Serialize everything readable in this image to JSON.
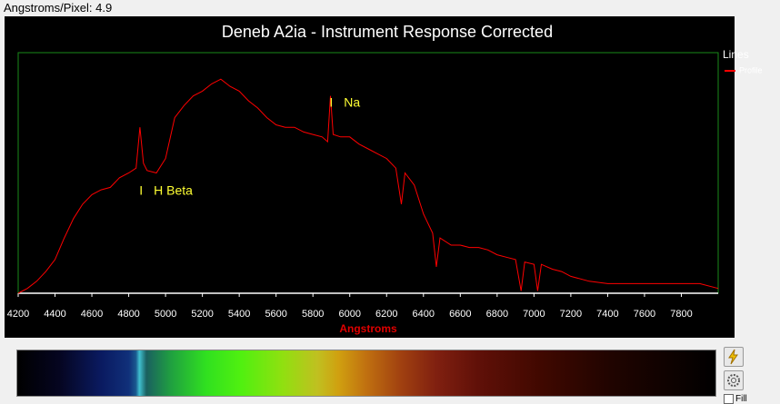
{
  "header": {
    "scale_label": "Angstroms/Pixel: 4.9"
  },
  "chart_data": {
    "type": "line",
    "title": "Deneb A2ia - Instrument Response Corrected",
    "x_label": "Angstroms",
    "legend_title": "Lines",
    "legend": "top-right",
    "grid": false,
    "xlim": [
      4200,
      8000
    ],
    "ylim": [
      0,
      1
    ],
    "xticks": [
      4200,
      4400,
      4600,
      4800,
      5000,
      5200,
      5400,
      5600,
      5800,
      6000,
      6200,
      6400,
      6600,
      6800,
      7000,
      7200,
      7400,
      7600,
      7800
    ],
    "x": [
      4200,
      4250,
      4300,
      4350,
      4400,
      4450,
      4500,
      4550,
      4600,
      4650,
      4700,
      4750,
      4800,
      4840,
      4861,
      4880,
      4900,
      4950,
      5000,
      5050,
      5100,
      5150,
      5200,
      5250,
      5300,
      5350,
      5400,
      5450,
      5500,
      5550,
      5600,
      5650,
      5700,
      5750,
      5800,
      5850,
      5880,
      5895,
      5910,
      5950,
      6000,
      6050,
      6100,
      6150,
      6200,
      6250,
      6280,
      6300,
      6350,
      6400,
      6450,
      6470,
      6490,
      6550,
      6600,
      6650,
      6700,
      6750,
      6800,
      6850,
      6900,
      6930,
      6950,
      7000,
      7020,
      7040,
      7100,
      7150,
      7200,
      7300,
      7400,
      7500,
      7600,
      7700,
      7800,
      7900,
      8000
    ],
    "series": [
      {
        "name": "Profile",
        "color": "#ff0000",
        "values": [
          0.0,
          0.02,
          0.05,
          0.09,
          0.14,
          0.23,
          0.31,
          0.37,
          0.41,
          0.43,
          0.44,
          0.48,
          0.5,
          0.52,
          0.69,
          0.54,
          0.51,
          0.5,
          0.56,
          0.73,
          0.78,
          0.82,
          0.84,
          0.87,
          0.89,
          0.86,
          0.84,
          0.8,
          0.77,
          0.73,
          0.7,
          0.69,
          0.69,
          0.67,
          0.66,
          0.65,
          0.63,
          0.82,
          0.66,
          0.65,
          0.65,
          0.62,
          0.6,
          0.58,
          0.56,
          0.52,
          0.37,
          0.5,
          0.45,
          0.33,
          0.25,
          0.11,
          0.23,
          0.2,
          0.2,
          0.19,
          0.19,
          0.18,
          0.16,
          0.15,
          0.14,
          0.01,
          0.13,
          0.12,
          0.01,
          0.12,
          0.1,
          0.09,
          0.07,
          0.05,
          0.04,
          0.04,
          0.04,
          0.04,
          0.04,
          0.04,
          0.02
        ]
      }
    ],
    "annotations": [
      {
        "marker": "I",
        "label": "H Beta",
        "x": 4867
      },
      {
        "marker": "I",
        "label": "Na",
        "x": 5899
      }
    ]
  },
  "controls": {
    "fill_label": "Fill"
  }
}
